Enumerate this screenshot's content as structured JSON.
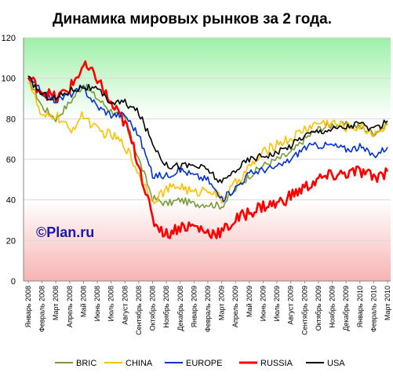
{
  "chart_data": {
    "type": "line",
    "title": "Динамика мировых рынков за 2 года.",
    "watermark": "©Plan.ru",
    "ylim": [
      0,
      120
    ],
    "yticks": [
      "0",
      "20",
      "40",
      "60",
      "80",
      "100",
      "120"
    ],
    "x_labels": [
      "Январь 2008",
      "Февраль 2008",
      "Март 2008",
      "Апрель 2008",
      "Май 2008",
      "Июнь 2008",
      "Июль 2008",
      "Август 2008",
      "Сентябрь 2008",
      "Октябрь 2008",
      "Ноябрь 2008",
      "Декабрь 2008",
      "Январь 2009",
      "Февраль 2009",
      "Март 2009",
      "Апрель 2009",
      "Май 2009",
      "Июнь 2009",
      "Июль 2009",
      "Август 2009",
      "Сентябрь 2009",
      "Октябрь 2009",
      "Ноябрь 2009",
      "Декабрь 2009",
      "Январь 2010",
      "Февраль 2010",
      "Март 2010"
    ],
    "bands": [
      {
        "from": 80,
        "to": 120,
        "color": "#9ef0a8"
      },
      {
        "from": 0,
        "to": 40,
        "color": "#f8b3b3"
      }
    ],
    "series": [
      {
        "name": "BRIC",
        "color": "#7a9a3a",
        "values": [
          100,
          86,
          80,
          88,
          97,
          90,
          84,
          80,
          60,
          41,
          38,
          40,
          38,
          38,
          37,
          45,
          52,
          57,
          60,
          63,
          70,
          75,
          77,
          77,
          76,
          73,
          77
        ]
      },
      {
        "name": "CHINA",
        "color": "#ffc000",
        "values": [
          100,
          80,
          82,
          74,
          82,
          74,
          72,
          67,
          53,
          40,
          45,
          47,
          43,
          46,
          40,
          48,
          56,
          63,
          68,
          70,
          75,
          78,
          78,
          76,
          76,
          73,
          77
        ]
      },
      {
        "name": "EUROPE",
        "color": "#0033cc",
        "values": [
          100,
          93,
          89,
          92,
          95,
          86,
          82,
          82,
          72,
          52,
          52,
          55,
          52,
          50,
          40,
          46,
          53,
          55,
          56,
          60,
          66,
          67,
          67,
          65,
          66,
          62,
          66
        ]
      },
      {
        "name": "RUSSIA",
        "color": "#ff0000",
        "values": [
          100,
          94,
          90,
          95,
          106,
          100,
          87,
          78,
          58,
          30,
          23,
          27,
          27,
          24,
          24,
          30,
          34,
          37,
          38,
          42,
          46,
          50,
          52,
          53,
          54,
          51,
          54
        ]
      },
      {
        "name": "USA",
        "color": "#000000",
        "values": [
          100,
          92,
          90,
          94,
          96,
          94,
          88,
          88,
          83,
          68,
          57,
          57,
          57,
          55,
          48,
          55,
          60,
          62,
          63,
          67,
          72,
          74,
          75,
          76,
          78,
          74,
          79
        ]
      }
    ]
  }
}
